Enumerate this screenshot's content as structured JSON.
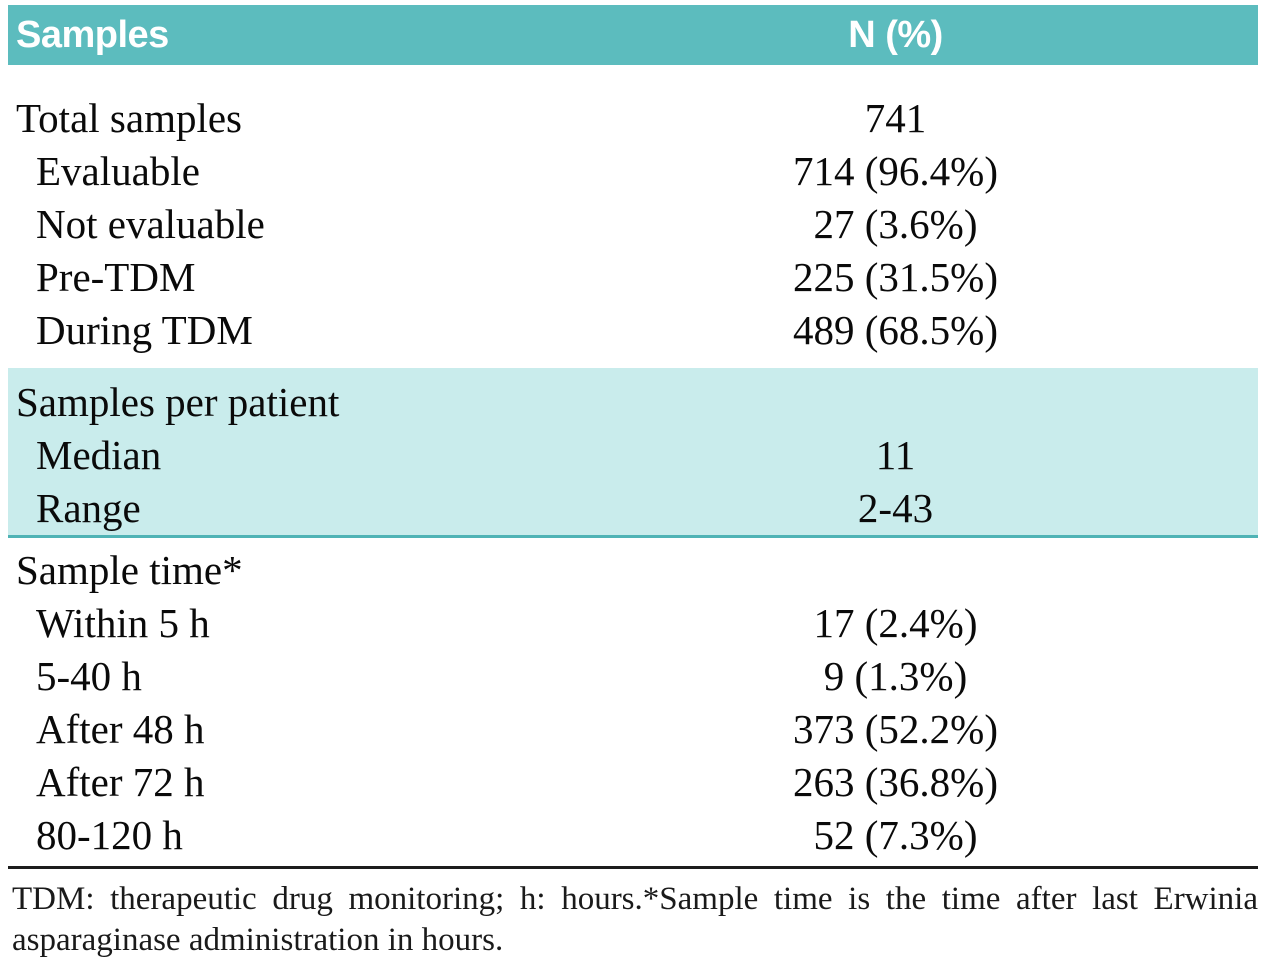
{
  "colors": {
    "header_bg": "#5cbcbe",
    "header_text": "#ffffff",
    "highlight_bg": "#c9ecec",
    "highlight_border": "#4fb3b5",
    "bottom_rule": "#1c1c1c",
    "body_text": "#0a0a0a"
  },
  "table": {
    "header": {
      "col1": "Samples",
      "col2": "N (%)"
    },
    "sections": [
      {
        "highlight": false,
        "rows": [
          {
            "label": "Total samples",
            "value": "741",
            "indent": false
          },
          {
            "label": "Evaluable",
            "value": "714 (96.4%)",
            "indent": true
          },
          {
            "label": "Not evaluable",
            "value": "27 (3.6%)",
            "indent": true
          },
          {
            "label": "Pre-TDM",
            "value": "225 (31.5%)",
            "indent": true
          },
          {
            "label": "During TDM",
            "value": "489 (68.5%)",
            "indent": true
          }
        ]
      },
      {
        "highlight": true,
        "rows": [
          {
            "label": "Samples per patient",
            "value": "",
            "indent": false
          },
          {
            "label": "Median",
            "value": "11",
            "indent": true
          },
          {
            "label": "Range",
            "value": "2-43",
            "indent": true
          }
        ]
      },
      {
        "highlight": false,
        "rows": [
          {
            "label": "Sample time*",
            "value": "",
            "indent": false
          },
          {
            "label": "Within 5 h",
            "value": "17 (2.4%)",
            "indent": true
          },
          {
            "label": "5-40 h",
            "value": "9 (1.3%)",
            "indent": true
          },
          {
            "label": "After 48 h",
            "value": "373 (52.2%)",
            "indent": true
          },
          {
            "label": "After 72 h",
            "value": "263 (36.8%)",
            "indent": true
          },
          {
            "label": "80-120 h",
            "value": "52 (7.3%)",
            "indent": true
          }
        ]
      }
    ],
    "footnote": "TDM: therapeutic drug monitoring; h: hours.*Sample time is the time after last Erwinia asparaginase administration in hours."
  }
}
